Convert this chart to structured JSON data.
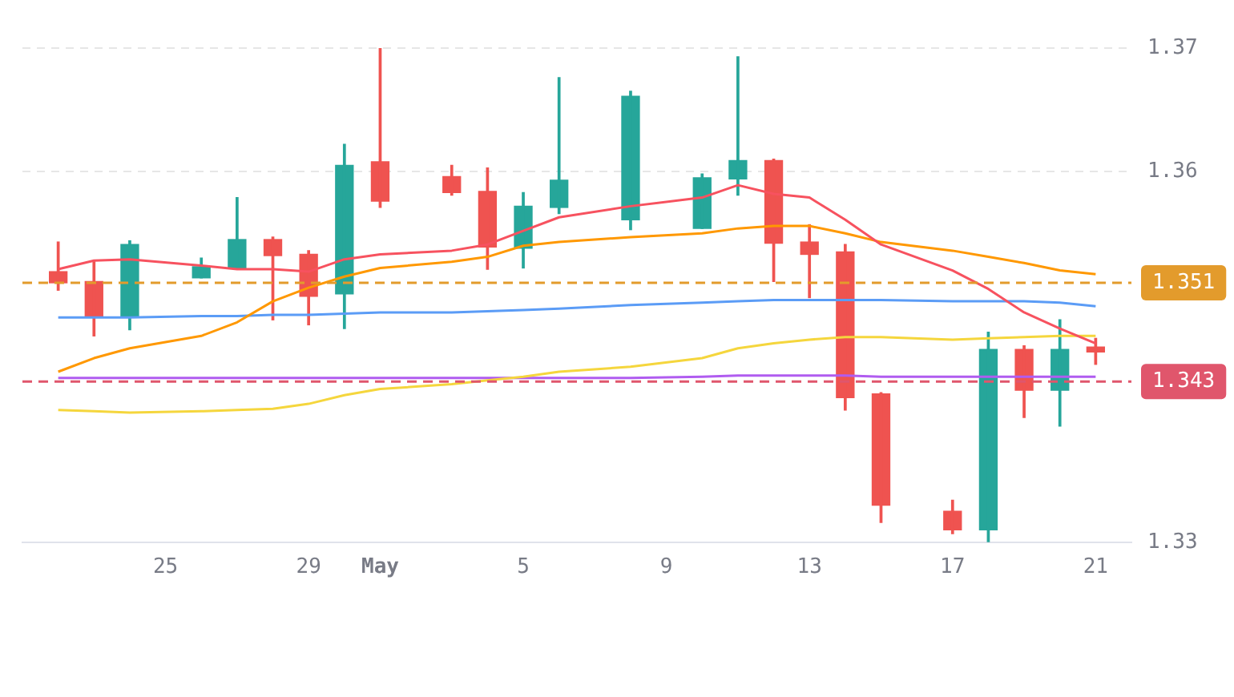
{
  "chart_data": {
    "type": "candlestick",
    "x": [
      "--04-22",
      "--04-23",
      "--04-24",
      "--04-26",
      "--04-27",
      "--04-28",
      "--04-29",
      "--04-30",
      "--05-01",
      "--05-03",
      "--05-04",
      "--05-05",
      "--05-06",
      "--05-08",
      "--05-10",
      "--05-11",
      "--05-12",
      "--05-13",
      "--05-14",
      "--05-15",
      "--05-17",
      "--05-18",
      "--05-19",
      "--05-20",
      "--05-21"
    ],
    "ohlc": [
      [
        1.3519,
        1.3543,
        1.3504,
        1.351
      ],
      [
        1.3511,
        1.3527,
        1.3467,
        1.3483
      ],
      [
        1.3483,
        1.3544,
        1.3472,
        1.3541
      ],
      [
        1.3514,
        1.353,
        1.3514,
        1.3523
      ],
      [
        1.3522,
        1.3579,
        1.3521,
        1.3545
      ],
      [
        1.3545,
        1.3547,
        1.348,
        1.3532
      ],
      [
        1.3533,
        1.3536,
        1.3476,
        1.3499
      ],
      [
        1.3501,
        1.3622,
        1.3473,
        1.3605
      ],
      [
        1.3608,
        1.37,
        1.3571,
        1.3576
      ],
      [
        1.3596,
        1.3605,
        1.3581,
        1.3583
      ],
      [
        1.3584,
        1.3603,
        1.3521,
        1.3539
      ],
      [
        1.3538,
        1.3583,
        1.3522,
        1.3572
      ],
      [
        1.3571,
        1.3676,
        1.3566,
        1.3593
      ],
      [
        1.3561,
        1.3665,
        1.3553,
        1.3661
      ],
      [
        1.3554,
        1.3598,
        1.3554,
        1.3595
      ],
      [
        1.3594,
        1.3693,
        1.3581,
        1.3609
      ],
      [
        1.3609,
        1.361,
        1.3511,
        1.3542
      ],
      [
        1.3543,
        1.3557,
        1.3498,
        1.3533
      ],
      [
        1.3535,
        1.3541,
        1.3407,
        1.3417
      ],
      [
        1.342,
        1.3421,
        1.3316,
        1.333
      ],
      [
        1.3325,
        1.3334,
        1.3307,
        1.331
      ],
      [
        1.331,
        1.347,
        1.33,
        1.3456
      ],
      [
        1.3456,
        1.3459,
        1.3401,
        1.3423
      ],
      [
        1.3423,
        1.348,
        1.3394,
        1.3456
      ],
      [
        1.3458,
        1.3465,
        1.3444,
        1.3454
      ]
    ],
    "colors": [
      "#ef5350",
      "#ef5350",
      "#26a69a",
      "#26a69a",
      "#26a69a",
      "#ef5350",
      "#ef5350",
      "#26a69a",
      "#ef5350",
      "#ef5350",
      "#ef5350",
      "#26a69a",
      "#26a69a",
      "#26a69a",
      "#26a69a",
      "#26a69a",
      "#ef5350",
      "#ef5350",
      "#ef5350",
      "#ef5350",
      "#ef5350",
      "#26a69a",
      "#ef5350",
      "#26a69a",
      "#ef5350"
    ],
    "series": [
      {
        "type": "line",
        "color": "#f7525f",
        "values": [
          1.3521,
          1.3528,
          1.3529,
          1.3524,
          1.3521,
          1.3521,
          1.3519,
          1.3529,
          1.3533,
          1.3536,
          1.3541,
          1.3552,
          1.3563,
          1.3572,
          1.3579,
          1.3589,
          1.3582,
          1.3579,
          1.3561,
          1.3541,
          1.352,
          1.3505,
          1.3486,
          1.3473,
          1.3461
        ]
      },
      {
        "type": "line",
        "color": "#ff9800",
        "values": [
          1.3438,
          1.3449,
          1.3457,
          1.3467,
          1.3478,
          1.3495,
          1.3506,
          1.3515,
          1.3522,
          1.3527,
          1.3531,
          1.354,
          1.3543,
          1.3547,
          1.355,
          1.3554,
          1.3556,
          1.3556,
          1.355,
          1.3543,
          1.3536,
          1.3531,
          1.3526,
          1.352,
          1.3517
        ]
      },
      {
        "type": "line",
        "color": "#5b9cf6",
        "values": [
          1.3482,
          1.3482,
          1.3482,
          1.3483,
          1.3483,
          1.3484,
          1.3484,
          1.3485,
          1.3486,
          1.3486,
          1.3487,
          1.3488,
          1.3489,
          1.3492,
          1.3494,
          1.3495,
          1.3496,
          1.3496,
          1.3496,
          1.3496,
          1.3495,
          1.3495,
          1.3495,
          1.3494,
          1.3491
        ]
      },
      {
        "type": "line",
        "color": "#f5d63d",
        "values": [
          1.3407,
          1.3406,
          1.3405,
          1.3406,
          1.3407,
          1.3408,
          1.3412,
          1.3419,
          1.3424,
          1.3428,
          1.3431,
          1.3434,
          1.3438,
          1.3442,
          1.3449,
          1.3457,
          1.3461,
          1.3464,
          1.3466,
          1.3466,
          1.3464,
          1.3465,
          1.3466,
          1.3467,
          1.3467
        ]
      },
      {
        "type": "line",
        "color": "#b05cf0",
        "values": [
          1.3433,
          1.3433,
          1.3433,
          1.3433,
          1.3433,
          1.3433,
          1.3433,
          1.3433,
          1.3433,
          1.3433,
          1.3433,
          1.3433,
          1.3433,
          1.3433,
          1.3434,
          1.3435,
          1.3435,
          1.3435,
          1.3435,
          1.3434,
          1.3434,
          1.3434,
          1.3434,
          1.3434,
          1.3434
        ]
      }
    ],
    "xlim": [
      "--04-21",
      "--05-22"
    ],
    "xticks": [
      {
        "value": "--04-25",
        "label": "25"
      },
      {
        "value": "--04-29",
        "label": "29"
      },
      {
        "value": "--05-01",
        "label": "May"
      },
      {
        "value": "--05-05",
        "label": "5"
      },
      {
        "value": "--05-09",
        "label": "9"
      },
      {
        "value": "--05-13",
        "label": "13"
      },
      {
        "value": "--05-17",
        "label": "17"
      },
      {
        "value": "--05-21",
        "label": "21"
      }
    ],
    "ylim": [
      1.33,
      1.37
    ],
    "yticks": [
      1.33,
      1.36,
      1.37
    ],
    "ref_lines": [
      {
        "axis": "y",
        "value": 1.351,
        "label": "1.351",
        "color": "#e39b2c",
        "line_style": "dashed"
      },
      {
        "axis": "y",
        "value": 1.343,
        "label": "1.343",
        "color": "#e0566c",
        "line_style": "dashed"
      }
    ],
    "grid": "y",
    "legend": false,
    "marker": "none",
    "line_style": "solid"
  }
}
